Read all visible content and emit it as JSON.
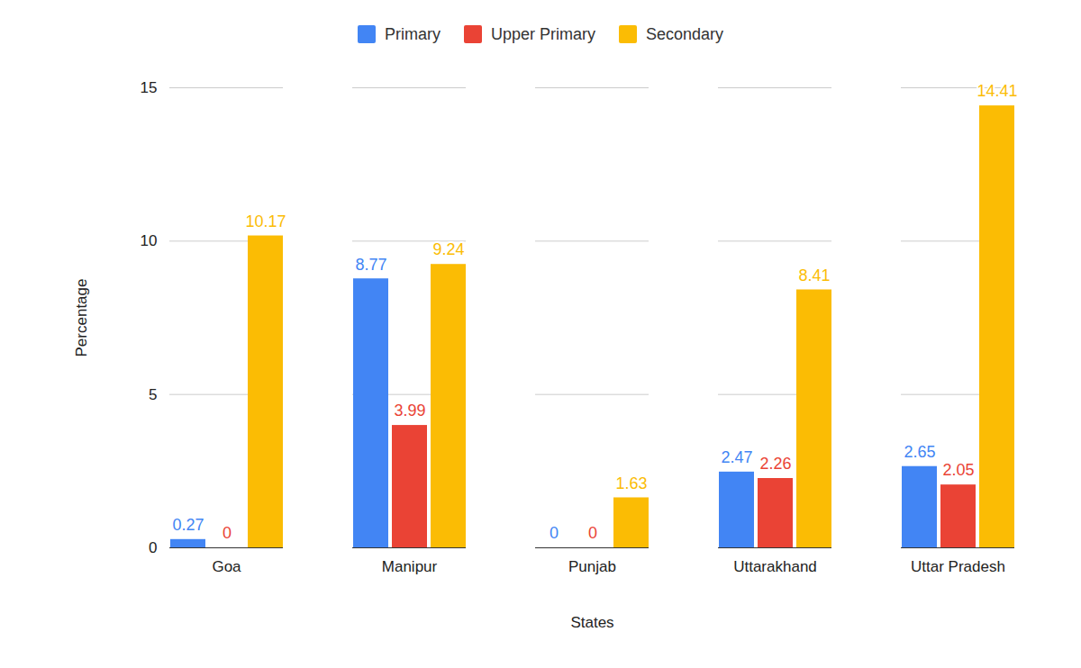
{
  "chart_data": {
    "type": "bar",
    "categories": [
      "Goa",
      "Manipur",
      "Punjab",
      "Uttarakhand",
      "Uttar Pradesh"
    ],
    "series": [
      {
        "name": "Primary",
        "color": "#4285f4",
        "values": [
          0.27,
          8.77,
          0,
          2.47,
          2.65
        ]
      },
      {
        "name": "Upper Primary",
        "color": "#ea4335",
        "values": [
          0,
          3.99,
          0,
          2.26,
          2.05
        ]
      },
      {
        "name": "Secondary",
        "color": "#fbbc04",
        "values": [
          10.17,
          9.24,
          1.63,
          8.41,
          14.41
        ]
      }
    ],
    "x_label": "States",
    "y_label": "Percentage",
    "ylim": [
      0,
      15
    ],
    "yticks": [
      0,
      5,
      10,
      15
    ],
    "grid": true,
    "legend": "top",
    "data_labels": true
  }
}
